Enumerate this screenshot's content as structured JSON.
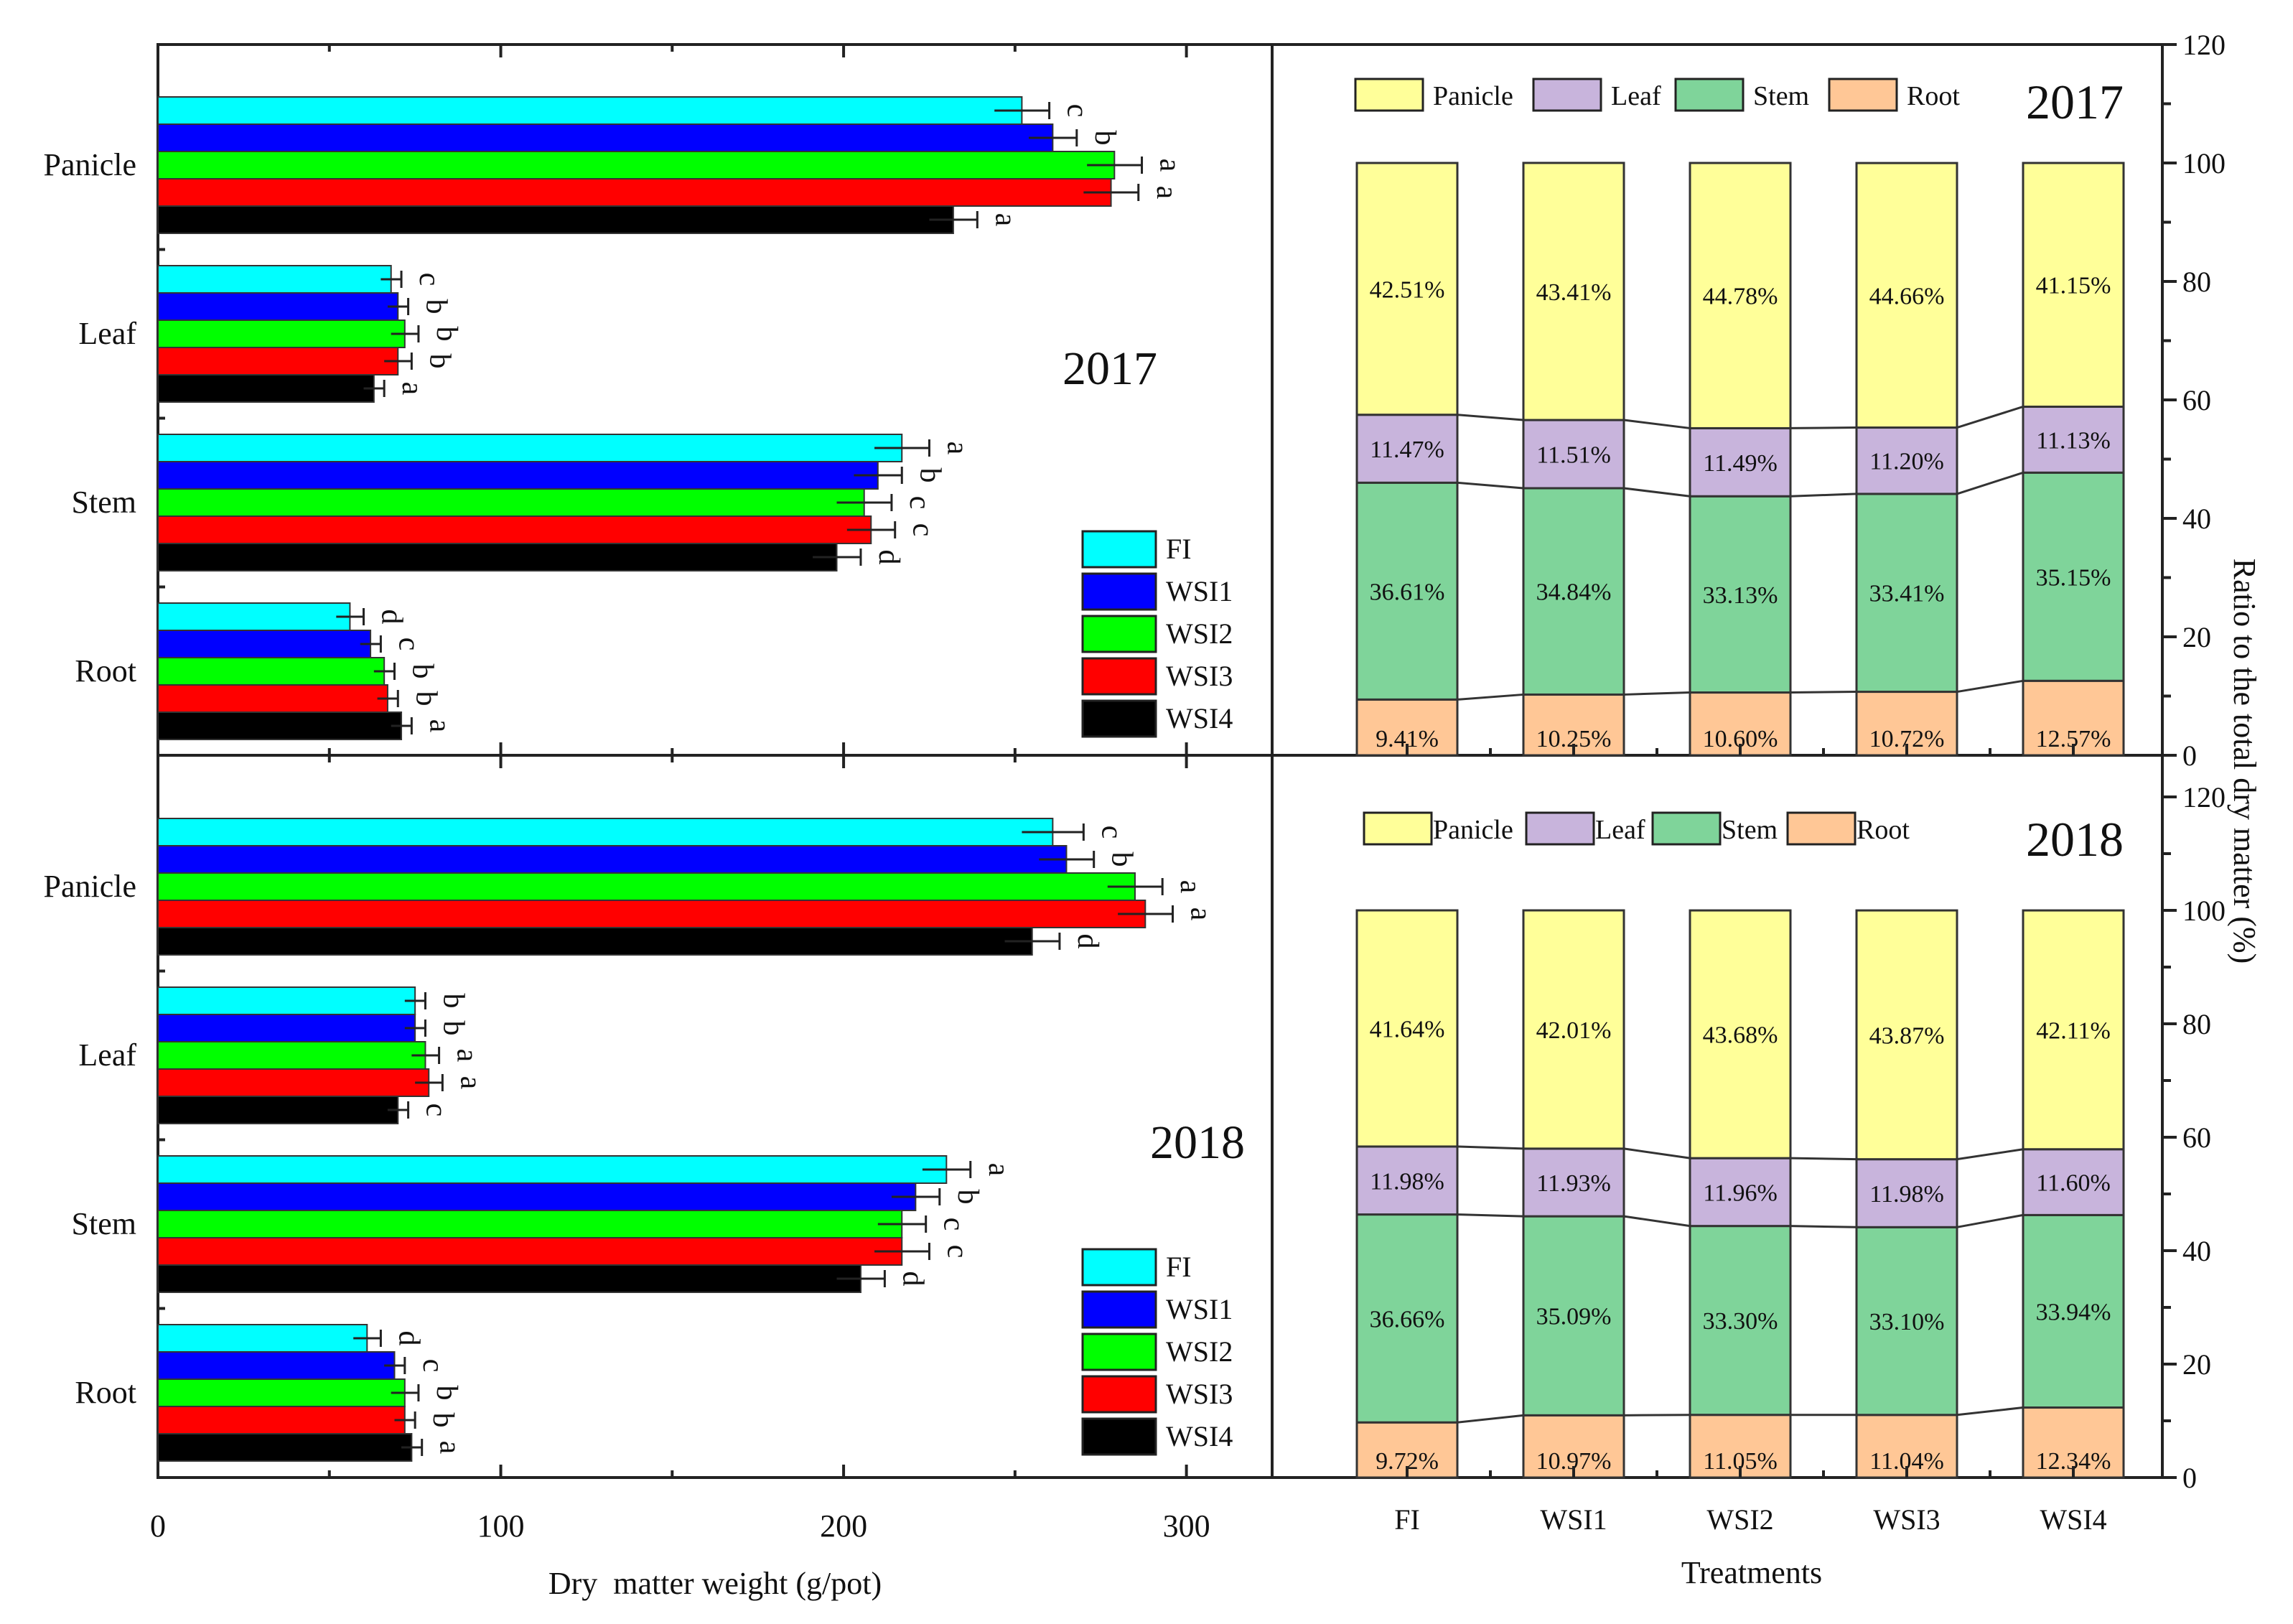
{
  "figure": {
    "left_xlabel": "Dry  matter weight (g/pot)",
    "right_xlabel": "Treatments",
    "right_ylabel": "Ratio to the total dry matter (%)"
  },
  "colors": {
    "FI": "#00ffff",
    "WSI1": "#0000ff",
    "WSI2": "#00ff00",
    "WSI3": "#ff0000",
    "WSI4": "#000000",
    "Panicle": "#ffff99",
    "Leaf": "#c8b4dc",
    "Stem": "#7fd49a",
    "Root": "#ffc796"
  },
  "chart_data": [
    {
      "type": "bar",
      "orientation": "horizontal",
      "panel": "left-top",
      "year_label": "2017",
      "categories": [
        "Panicle",
        "Leaf",
        "Stem",
        "Root"
      ],
      "xlim": [
        0,
        325
      ],
      "xticks": [
        "0",
        "100",
        "200",
        "300"
      ],
      "xlabel": "Dry  matter weight (g/pot)",
      "legend": [
        "FI",
        "WSI1",
        "WSI2",
        "WSI3",
        "WSI4"
      ],
      "series": [
        {
          "name": "FI",
          "values": [
            252,
            68,
            217,
            56
          ],
          "errors": [
            8,
            3,
            8,
            4
          ],
          "letters": [
            "c",
            "c",
            "a",
            "d"
          ]
        },
        {
          "name": "WSI1",
          "values": [
            261,
            70,
            210,
            62
          ],
          "errors": [
            7,
            3,
            7,
            3
          ],
          "letters": [
            "b",
            "b",
            "b",
            "c"
          ]
        },
        {
          "name": "WSI2",
          "values": [
            279,
            72,
            206,
            66
          ],
          "errors": [
            8,
            4,
            8,
            3
          ],
          "letters": [
            "a",
            "b",
            "c",
            "b"
          ]
        },
        {
          "name": "WSI3",
          "values": [
            278,
            70,
            208,
            67
          ],
          "errors": [
            8,
            4,
            7,
            3
          ],
          "letters": [
            "a",
            "b",
            "c",
            "b"
          ]
        },
        {
          "name": "WSI4",
          "values": [
            232,
            63,
            198,
            71
          ],
          "errors": [
            7,
            3,
            7,
            3
          ],
          "letters": [
            "a",
            "a",
            "d",
            "a"
          ]
        }
      ]
    },
    {
      "type": "bar",
      "orientation": "horizontal",
      "panel": "left-bottom",
      "year_label": "2018",
      "categories": [
        "Panicle",
        "Leaf",
        "Stem",
        "Root"
      ],
      "xlim": [
        0,
        325
      ],
      "xticks": [
        "0",
        "100",
        "200",
        "300"
      ],
      "xlabel": "Dry  matter weight (g/pot)",
      "legend": [
        "FI",
        "WSI1",
        "WSI2",
        "WSI3",
        "WSI4"
      ],
      "series": [
        {
          "name": "FI",
          "values": [
            261,
            75,
            230,
            61
          ],
          "errors": [
            9,
            3,
            7,
            4
          ],
          "letters": [
            "c",
            "b",
            "a",
            "d"
          ]
        },
        {
          "name": "WSI1",
          "values": [
            265,
            75,
            221,
            69
          ],
          "errors": [
            8,
            3,
            7,
            3
          ],
          "letters": [
            "b",
            "b",
            "b",
            "c"
          ]
        },
        {
          "name": "WSI2",
          "values": [
            285,
            78,
            217,
            72
          ],
          "errors": [
            8,
            4,
            7,
            4
          ],
          "letters": [
            "a",
            "a",
            "c",
            "b"
          ]
        },
        {
          "name": "WSI3",
          "values": [
            288,
            79,
            217,
            72
          ],
          "errors": [
            8,
            4,
            8,
            3
          ],
          "letters": [
            "a",
            "a",
            "c",
            "b"
          ]
        },
        {
          "name": "WSI4",
          "values": [
            255,
            70,
            205,
            74
          ],
          "errors": [
            8,
            3,
            7,
            3
          ],
          "letters": [
            "d",
            "c",
            "d",
            "a"
          ]
        }
      ]
    },
    {
      "type": "bar",
      "orientation": "vertical-stacked",
      "panel": "right-top",
      "year_label": "2017",
      "categories": [
        "FI",
        "WSI1",
        "WSI2",
        "WSI3",
        "WSI4"
      ],
      "ylim": [
        0,
        120
      ],
      "yticks": [
        "0",
        "20",
        "40",
        "60",
        "80",
        "100",
        "120"
      ],
      "ylabel": "Ratio to the total dry matter (%)",
      "legend": [
        "Panicle",
        "Leaf",
        "Stem",
        "Root"
      ],
      "series": [
        {
          "name": "Root",
          "values": [
            9.41,
            10.25,
            10.6,
            10.72,
            12.57
          ],
          "labels": [
            "9.41%",
            "10.25%",
            "10.60%",
            "10.72%",
            "12.57%"
          ]
        },
        {
          "name": "Stem",
          "values": [
            36.61,
            34.84,
            33.13,
            33.41,
            35.15
          ],
          "labels": [
            "36.61%",
            "34.84%",
            "33.13%",
            "33.41%",
            "35.15%"
          ]
        },
        {
          "name": "Leaf",
          "values": [
            11.47,
            11.51,
            11.49,
            11.2,
            11.13
          ],
          "labels": [
            "11.47%",
            "11.51%",
            "11.49%",
            "11.20%",
            "11.13%"
          ]
        },
        {
          "name": "Panicle",
          "values": [
            42.51,
            43.41,
            44.78,
            44.66,
            41.15
          ],
          "labels": [
            "42.51%",
            "43.41%",
            "44.78%",
            "44.66%",
            "41.15%"
          ]
        }
      ]
    },
    {
      "type": "bar",
      "orientation": "vertical-stacked",
      "panel": "right-bottom",
      "year_label": "2018",
      "categories": [
        "FI",
        "WSI1",
        "WSI2",
        "WSI3",
        "WSI4"
      ],
      "ylim": [
        0,
        120
      ],
      "yticks": [
        "0",
        "20",
        "40",
        "60",
        "80",
        "100",
        "120"
      ],
      "ylabel": "Ratio to the total dry matter (%)",
      "xlabel": "Treatments",
      "legend": [
        "Panicle",
        "Leaf",
        "Stem",
        "Root"
      ],
      "series": [
        {
          "name": "Root",
          "values": [
            9.72,
            10.97,
            11.05,
            11.04,
            12.34
          ],
          "labels": [
            "9.72%",
            "10.97%",
            "11.05%",
            "11.04%",
            "12.34%"
          ]
        },
        {
          "name": "Stem",
          "values": [
            36.66,
            35.09,
            33.3,
            33.1,
            33.94
          ],
          "labels": [
            "36.66%",
            "35.09%",
            "33.30%",
            "33.10%",
            "33.94%"
          ]
        },
        {
          "name": "Leaf",
          "values": [
            11.98,
            11.93,
            11.96,
            11.98,
            11.6
          ],
          "labels": [
            "11.98%",
            "11.93%",
            "11.96%",
            "11.98%",
            "11.60%"
          ]
        },
        {
          "name": "Panicle",
          "values": [
            41.64,
            42.01,
            43.68,
            43.87,
            42.11
          ],
          "labels": [
            "41.64%",
            "42.01%",
            "43.68%",
            "43.87%",
            "42.11%"
          ]
        }
      ]
    }
  ]
}
